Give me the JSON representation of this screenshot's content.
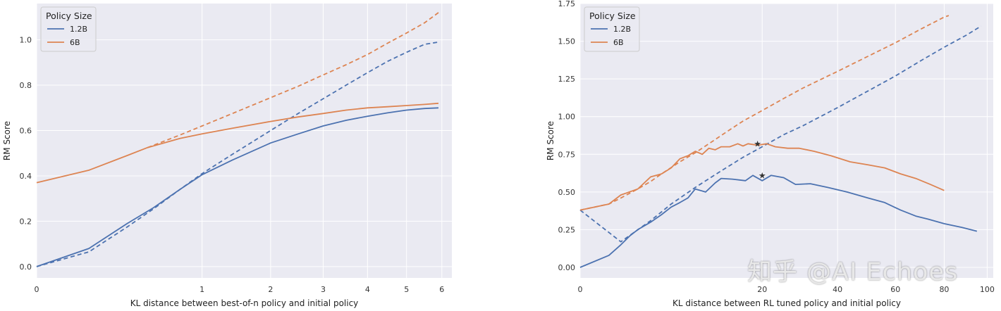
{
  "colors": {
    "blue": "#4c72b0",
    "orange": "#dd8452",
    "grid_bg": "#eaeaf2"
  },
  "watermark": "知乎 @AI Echoes",
  "chart_data": [
    {
      "type": "line",
      "xscale": "sqrt",
      "xlabel": "KL distance between best-of-n policy and initial policy",
      "ylabel": "RM Score",
      "xlim": [
        0,
        6.3
      ],
      "ylim": [
        -0.05,
        1.16
      ],
      "xticks": [
        0,
        1,
        2,
        3,
        4,
        5,
        6
      ],
      "yticks": [
        0.0,
        0.2,
        0.4,
        0.6,
        0.8,
        1.0
      ],
      "ytick_labels": [
        "0.0",
        "0.2",
        "0.4",
        "0.6",
        "0.8",
        "1.0"
      ],
      "legend": {
        "title": "Policy Size",
        "position": "top-left",
        "entries": [
          "1.2B",
          "6B"
        ]
      },
      "series": [
        {
          "name": "1.2B",
          "color": "blue",
          "style": "solid",
          "points": [
            [
              0,
              0.0
            ],
            [
              0.1,
              0.08
            ],
            [
              0.3,
              0.19
            ],
            [
              0.5,
              0.26
            ],
            [
              0.75,
              0.34
            ],
            [
              1.0,
              0.405
            ],
            [
              1.4,
              0.47
            ],
            [
              2.0,
              0.545
            ],
            [
              2.5,
              0.585
            ],
            [
              3.0,
              0.62
            ],
            [
              3.5,
              0.645
            ],
            [
              4.0,
              0.663
            ],
            [
              4.5,
              0.678
            ],
            [
              5.0,
              0.69
            ],
            [
              5.5,
              0.697
            ],
            [
              5.9,
              0.7
            ]
          ]
        },
        {
          "name": "1.2B (fit)",
          "color": "blue",
          "style": "dashed",
          "points": [
            [
              0,
              0.0
            ],
            [
              0.1,
              0.065
            ],
            [
              0.3,
              0.175
            ],
            [
              0.5,
              0.255
            ],
            [
              0.75,
              0.34
            ],
            [
              1.0,
              0.41
            ],
            [
              1.4,
              0.495
            ],
            [
              2.0,
              0.6
            ],
            [
              2.5,
              0.675
            ],
            [
              3.0,
              0.74
            ],
            [
              3.5,
              0.8
            ],
            [
              4.0,
              0.855
            ],
            [
              4.5,
              0.905
            ],
            [
              5.0,
              0.945
            ],
            [
              5.5,
              0.98
            ],
            [
              5.9,
              0.99
            ]
          ]
        },
        {
          "name": "6B",
          "color": "orange",
          "style": "solid",
          "points": [
            [
              0,
              0.37
            ],
            [
              0.1,
              0.425
            ],
            [
              0.3,
              0.49
            ],
            [
              0.45,
              0.525
            ],
            [
              0.75,
              0.565
            ],
            [
              1.0,
              0.585
            ],
            [
              1.4,
              0.61
            ],
            [
              2.0,
              0.64
            ],
            [
              2.5,
              0.66
            ],
            [
              3.0,
              0.675
            ],
            [
              3.5,
              0.69
            ],
            [
              4.0,
              0.7
            ],
            [
              4.5,
              0.705
            ],
            [
              5.0,
              0.71
            ],
            [
              5.5,
              0.715
            ],
            [
              5.9,
              0.72
            ]
          ]
        },
        {
          "name": "6B (fit)",
          "color": "orange",
          "style": "dashed",
          "points": [
            [
              0.45,
              0.525
            ],
            [
              0.75,
              0.58
            ],
            [
              1.0,
              0.62
            ],
            [
              1.4,
              0.675
            ],
            [
              2.0,
              0.745
            ],
            [
              2.5,
              0.795
            ],
            [
              3.0,
              0.845
            ],
            [
              3.5,
              0.89
            ],
            [
              4.0,
              0.935
            ],
            [
              4.5,
              0.985
            ],
            [
              5.0,
              1.03
            ],
            [
              5.5,
              1.075
            ],
            [
              5.9,
              1.12
            ]
          ]
        }
      ]
    },
    {
      "type": "line",
      "xscale": "sqrt",
      "xlabel": "KL distance between RL tuned policy and initial policy",
      "ylabel": "RM Score",
      "xlim": [
        0,
        103
      ],
      "ylim": [
        -0.07,
        1.75
      ],
      "xticks": [
        0,
        20,
        40,
        60,
        80,
        100
      ],
      "yticks": [
        0.0,
        0.25,
        0.5,
        0.75,
        1.0,
        1.25,
        1.5,
        1.75
      ],
      "ytick_labels": [
        "0.00",
        "0.25",
        "0.50",
        "0.75",
        "1.00",
        "1.25",
        "1.50",
        "1.75"
      ],
      "legend": {
        "title": "Policy Size",
        "position": "top-left",
        "entries": [
          "1.2B",
          "6B"
        ]
      },
      "series": [
        {
          "name": "1.2B",
          "color": "blue",
          "style": "solid",
          "points": [
            [
              0,
              0.0
            ],
            [
              0.5,
              0.08
            ],
            [
              1,
              0.15
            ],
            [
              1.5,
              0.21
            ],
            [
              2,
              0.25
            ],
            [
              3,
              0.3
            ],
            [
              4,
              0.35
            ],
            [
              5,
              0.4
            ],
            [
              6,
              0.43
            ],
            [
              7,
              0.46
            ],
            [
              8,
              0.52
            ],
            [
              9.5,
              0.5
            ],
            [
              11,
              0.56
            ],
            [
              12,
              0.59
            ],
            [
              14,
              0.585
            ],
            [
              16.5,
              0.575
            ],
            [
              18,
              0.61
            ],
            [
              20,
              0.575
            ],
            [
              22,
              0.61
            ],
            [
              25,
              0.595
            ],
            [
              28,
              0.55
            ],
            [
              32,
              0.555
            ],
            [
              37,
              0.53
            ],
            [
              43,
              0.5
            ],
            [
              50,
              0.46
            ],
            [
              56,
              0.43
            ],
            [
              62,
              0.38
            ],
            [
              68,
              0.34
            ],
            [
              73,
              0.32
            ],
            [
              80,
              0.29
            ],
            [
              88,
              0.265
            ],
            [
              95,
              0.24
            ]
          ]
        },
        {
          "name": "1.2B (fit)",
          "color": "blue",
          "style": "dashed",
          "points": [
            [
              0,
              0.38
            ],
            [
              1,
              0.17
            ],
            [
              3,
              0.31
            ],
            [
              5,
              0.42
            ],
            [
              8,
              0.53
            ],
            [
              12,
              0.64
            ],
            [
              16,
              0.73
            ],
            [
              20,
              0.8
            ],
            [
              25,
              0.88
            ],
            [
              30,
              0.94
            ],
            [
              40,
              1.06
            ],
            [
              50,
              1.17
            ],
            [
              60,
              1.27
            ],
            [
              70,
              1.37
            ],
            [
              80,
              1.46
            ],
            [
              90,
              1.54
            ],
            [
              97,
              1.6
            ]
          ]
        },
        {
          "name": "6B",
          "color": "orange",
          "style": "solid",
          "points": [
            [
              0,
              0.38
            ],
            [
              0.5,
              0.42
            ],
            [
              1,
              0.48
            ],
            [
              2,
              0.52
            ],
            [
              3,
              0.6
            ],
            [
              4,
              0.62
            ],
            [
              5,
              0.66
            ],
            [
              6,
              0.72
            ],
            [
              7,
              0.74
            ],
            [
              8,
              0.77
            ],
            [
              9,
              0.75
            ],
            [
              10,
              0.79
            ],
            [
              11,
              0.78
            ],
            [
              12,
              0.8
            ],
            [
              13.5,
              0.8
            ],
            [
              15,
              0.82
            ],
            [
              16,
              0.805
            ],
            [
              17,
              0.82
            ],
            [
              19,
              0.81
            ],
            [
              21,
              0.82
            ],
            [
              23,
              0.8
            ],
            [
              26,
              0.79
            ],
            [
              29,
              0.79
            ],
            [
              33,
              0.77
            ],
            [
              38,
              0.74
            ],
            [
              44,
              0.7
            ],
            [
              50,
              0.68
            ],
            [
              56,
              0.66
            ],
            [
              62,
              0.62
            ],
            [
              68,
              0.59
            ],
            [
              74,
              0.55
            ],
            [
              80,
              0.51
            ]
          ]
        },
        {
          "name": "6B (fit)",
          "color": "orange",
          "style": "dashed",
          "points": [
            [
              0,
              0.38
            ],
            [
              0.5,
              0.42
            ],
            [
              1,
              0.46
            ],
            [
              2,
              0.52
            ],
            [
              3,
              0.57
            ],
            [
              4,
              0.62
            ],
            [
              6,
              0.7
            ],
            [
              8,
              0.76
            ],
            [
              10,
              0.82
            ],
            [
              13,
              0.9
            ],
            [
              16,
              0.97
            ],
            [
              20,
              1.04
            ],
            [
              25,
              1.12
            ],
            [
              30,
              1.19
            ],
            [
              40,
              1.3
            ],
            [
              50,
              1.4
            ],
            [
              60,
              1.49
            ],
            [
              70,
              1.58
            ],
            [
              80,
              1.66
            ],
            [
              82,
              1.67
            ]
          ]
        }
      ],
      "markers": [
        {
          "name": "1.2B optimum",
          "x": 20,
          "y": 0.61,
          "symbol": "star"
        },
        {
          "name": "6B optimum",
          "x": 19,
          "y": 0.82,
          "symbol": "star"
        }
      ]
    }
  ]
}
